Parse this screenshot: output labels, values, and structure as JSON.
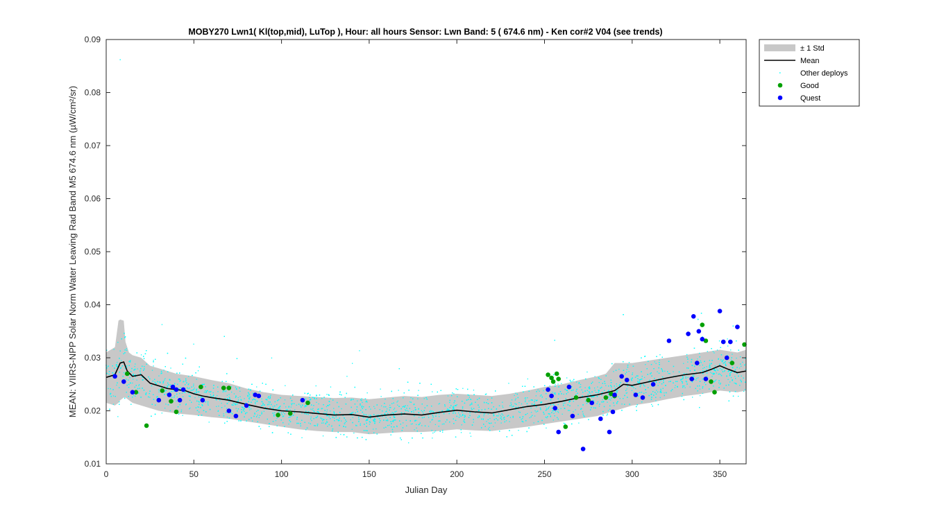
{
  "chart_data": {
    "type": "scatter",
    "title": "MOBY270   Lwn1( Kl(top,mid), LuTop ),    Hour: all hours  Sensor: Lwn Band: 5 ( 674.6 nm)  - Ken cor#2 V04 (see trends)",
    "xlabel": "Julian Day",
    "ylabel": "MEAN: VIIRS-NPP Solar Norm Water Leaving Rad Band M5 674.6 nm (µW/cm²/sr)",
    "xlim": [
      0,
      365
    ],
    "ylim": [
      0.01,
      0.09
    ],
    "x_ticks": [
      0,
      50,
      100,
      150,
      200,
      250,
      300,
      350
    ],
    "x_tick_labels": [
      "0",
      "50",
      "100",
      "150",
      "200",
      "250",
      "300",
      "350"
    ],
    "y_ticks": [
      0.01,
      0.02,
      0.03,
      0.04,
      0.05,
      0.06,
      0.07,
      0.08,
      0.09
    ],
    "y_tick_labels": [
      "0.01",
      "0.02",
      "0.03",
      "0.04",
      "0.05",
      "0.06",
      "0.07",
      "0.08",
      "0.09"
    ],
    "grid": false,
    "legend_position": "outside-top-right",
    "legend": [
      {
        "label": "± 1 Std",
        "kind": "band",
        "color": "#c8c8c8"
      },
      {
        "label": "Mean",
        "kind": "line",
        "color": "#000000"
      },
      {
        "label": "Other deploys",
        "kind": "dot",
        "color": "#00ffff"
      },
      {
        "label": "Good",
        "kind": "marker",
        "color": "#00a000"
      },
      {
        "label": "Quest",
        "kind": "marker",
        "color": "#0000ff"
      }
    ],
    "series": [
      {
        "name": "Mean",
        "x": [
          0,
          5,
          8,
          10,
          12,
          15,
          20,
          25,
          30,
          35,
          40,
          45,
          50,
          55,
          60,
          70,
          80,
          90,
          100,
          110,
          120,
          130,
          140,
          150,
          160,
          170,
          180,
          190,
          200,
          210,
          220,
          230,
          240,
          250,
          260,
          270,
          280,
          290,
          295,
          300,
          310,
          320,
          330,
          340,
          345,
          350,
          355,
          360,
          365
        ],
        "y": [
          0.0263,
          0.0268,
          0.029,
          0.0292,
          0.0275,
          0.0265,
          0.0268,
          0.0252,
          0.0247,
          0.0242,
          0.024,
          0.0238,
          0.0232,
          0.0228,
          0.0225,
          0.022,
          0.0212,
          0.0205,
          0.02,
          0.0198,
          0.0195,
          0.0192,
          0.0193,
          0.0188,
          0.0192,
          0.0194,
          0.0192,
          0.0197,
          0.0201,
          0.0198,
          0.0196,
          0.0202,
          0.0208,
          0.0212,
          0.0218,
          0.0225,
          0.023,
          0.0238,
          0.025,
          0.0248,
          0.0255,
          0.0262,
          0.0268,
          0.0272,
          0.0278,
          0.0285,
          0.0278,
          0.0272,
          0.0275
        ]
      },
      {
        "name": "± 1 Std",
        "x": [
          0,
          5,
          7,
          8,
          10,
          11,
          13,
          15,
          20,
          25,
          30,
          40,
          50,
          60,
          70,
          80,
          90,
          100,
          110,
          120,
          130,
          140,
          150,
          160,
          170,
          180,
          190,
          200,
          210,
          220,
          230,
          240,
          250,
          260,
          270,
          280,
          285,
          290,
          300,
          310,
          320,
          330,
          340,
          350,
          360,
          365
        ],
        "upper": [
          0.031,
          0.032,
          0.037,
          0.0372,
          0.037,
          0.033,
          0.031,
          0.0305,
          0.03,
          0.0285,
          0.028,
          0.027,
          0.0265,
          0.0258,
          0.0252,
          0.0242,
          0.0235,
          0.023,
          0.0228,
          0.0226,
          0.0224,
          0.0225,
          0.0222,
          0.0225,
          0.0228,
          0.0226,
          0.023,
          0.0232,
          0.023,
          0.0228,
          0.0232,
          0.0238,
          0.0245,
          0.025,
          0.0258,
          0.0265,
          0.027,
          0.029,
          0.029,
          0.0295,
          0.03,
          0.0305,
          0.031,
          0.0315,
          0.031,
          0.0315
        ],
        "lower": [
          0.0215,
          0.021,
          0.0215,
          0.022,
          0.0225,
          0.0225,
          0.022,
          0.0215,
          0.021,
          0.0205,
          0.02,
          0.0195,
          0.0192,
          0.0188,
          0.0185,
          0.018,
          0.0175,
          0.017,
          0.0165,
          0.0162,
          0.016,
          0.016,
          0.0156,
          0.0158,
          0.016,
          0.016,
          0.0162,
          0.0165,
          0.0163,
          0.0162,
          0.0166,
          0.017,
          0.0175,
          0.018,
          0.0185,
          0.019,
          0.0195,
          0.02,
          0.021,
          0.0215,
          0.0222,
          0.0228,
          0.0232,
          0.0238,
          0.0235,
          0.0238
        ]
      },
      {
        "name": "Good",
        "x": [
          12,
          17,
          23,
          32,
          37,
          40,
          54,
          67,
          70,
          98,
          105,
          115,
          252,
          254,
          255,
          257,
          258,
          262,
          268,
          275,
          285,
          288,
          290,
          340,
          342,
          345,
          347,
          357,
          364
        ],
        "y": [
          0.027,
          0.0235,
          0.0172,
          0.0238,
          0.0218,
          0.0198,
          0.0245,
          0.0243,
          0.0243,
          0.0192,
          0.0195,
          0.0215,
          0.0268,
          0.0262,
          0.0255,
          0.027,
          0.026,
          0.017,
          0.0225,
          0.022,
          0.0225,
          0.0232,
          0.0228,
          0.0362,
          0.0332,
          0.0255,
          0.0235,
          0.029,
          0.0325
        ]
      },
      {
        "name": "Quest",
        "x": [
          5,
          10,
          15,
          30,
          36,
          38,
          40,
          42,
          44,
          55,
          70,
          74,
          80,
          85,
          87,
          112,
          252,
          254,
          256,
          258,
          264,
          266,
          272,
          277,
          282,
          287,
          289,
          290,
          294,
          297,
          302,
          306,
          312,
          321,
          332,
          334,
          335,
          337,
          338,
          340,
          342,
          350,
          352,
          354,
          356,
          360
        ],
        "y": [
          0.0265,
          0.0255,
          0.0235,
          0.022,
          0.023,
          0.0245,
          0.024,
          0.022,
          0.024,
          0.022,
          0.02,
          0.019,
          0.021,
          0.023,
          0.0228,
          0.022,
          0.024,
          0.0228,
          0.0205,
          0.016,
          0.0245,
          0.019,
          0.0128,
          0.0215,
          0.0185,
          0.016,
          0.0198,
          0.023,
          0.0265,
          0.0258,
          0.023,
          0.0225,
          0.025,
          0.0332,
          0.0345,
          0.026,
          0.0378,
          0.029,
          0.035,
          0.0335,
          0.026,
          0.0388,
          0.033,
          0.03,
          0.033,
          0.0358
        ]
      }
    ]
  }
}
